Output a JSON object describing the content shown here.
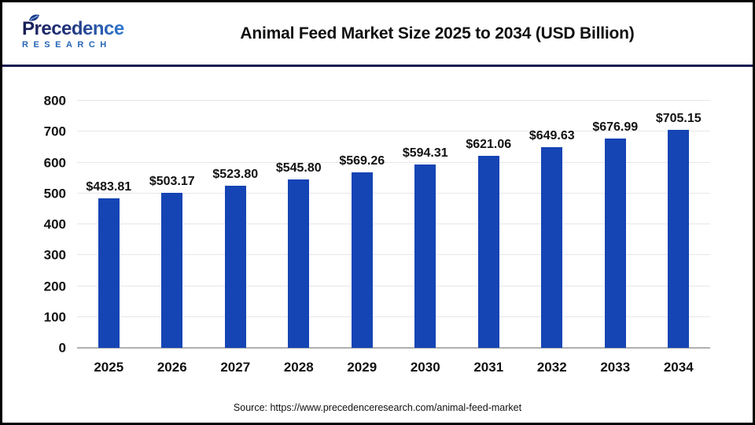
{
  "header": {
    "logo": {
      "brand": "Precedence",
      "sub": "RESEARCH"
    },
    "title": "Animal Feed Market Size 2025 to 2034 (USD Billion)"
  },
  "chart_data": {
    "type": "bar",
    "title": "Animal Feed Market Size 2025 to 2034 (USD Billion)",
    "categories": [
      "2025",
      "2026",
      "2027",
      "2028",
      "2029",
      "2030",
      "2031",
      "2032",
      "2033",
      "2034"
    ],
    "values": [
      483.81,
      503.17,
      523.8,
      545.8,
      569.26,
      594.31,
      621.06,
      649.63,
      676.99,
      705.15
    ],
    "value_labels": [
      "$483.81",
      "$503.17",
      "$523.80",
      "$545.80",
      "$569.26",
      "$594.31",
      "$621.06",
      "$649.63",
      "$676.99",
      "$705.15"
    ],
    "xlabel": "",
    "ylabel": "",
    "ylim": [
      0,
      800
    ],
    "yticks": [
      0,
      100,
      200,
      300,
      400,
      500,
      600,
      700,
      800
    ],
    "grid": true,
    "legend": "none",
    "bar_color": "#1544b4"
  },
  "footer": {
    "source": "Source: https://www.precedenceresearch.com/animal-feed-market"
  },
  "colors": {
    "bar": "#1544b4",
    "divider_navy": "#191c52",
    "grid": "#e7e7e7",
    "axis": "#b0b0b0",
    "logo_dark": "#181d55",
    "logo_light": "#2f7ed6",
    "research_blue": "#2565b5",
    "text": "#121212"
  }
}
